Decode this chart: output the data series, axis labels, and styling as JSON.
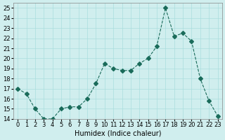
{
  "x": [
    0,
    1,
    2,
    3,
    4,
    5,
    6,
    7,
    8,
    9,
    10,
    11,
    12,
    13,
    14,
    15,
    16,
    17,
    18,
    19,
    20,
    21,
    22,
    23
  ],
  "y": [
    17.0,
    16.5,
    15.0,
    14.0,
    14.0,
    15.0,
    15.2,
    15.2,
    16.0,
    17.5,
    19.5,
    19.0,
    18.8,
    18.8,
    19.5,
    20.0,
    21.2,
    25.0,
    22.2,
    22.5,
    21.7,
    18.0,
    15.8,
    14.3
  ],
  "line_color": "#1a6b5a",
  "marker": "D",
  "marker_size": 3,
  "line_width": 0.8,
  "bg_color": "#d0eeee",
  "grid_color": "#aadddd",
  "xlabel": "Humidex (Indice chaleur)",
  "ylabel": "",
  "ylim": [
    14,
    25.5
  ],
  "xlim": [
    -0.5,
    23.5
  ],
  "yticks": [
    14,
    15,
    16,
    17,
    18,
    19,
    20,
    21,
    22,
    23,
    24,
    25
  ],
  "xticks": [
    0,
    1,
    2,
    3,
    4,
    5,
    6,
    7,
    8,
    9,
    10,
    11,
    12,
    13,
    14,
    15,
    16,
    17,
    18,
    19,
    20,
    21,
    22,
    23
  ],
  "title_fontsize": 7,
  "label_fontsize": 7,
  "tick_fontsize": 6
}
